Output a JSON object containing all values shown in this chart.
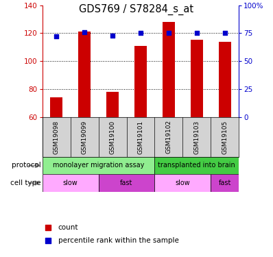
{
  "title": "GDS769 / S78284_s_at",
  "samples": [
    "GSM19098",
    "GSM19099",
    "GSM19100",
    "GSM19101",
    "GSM19102",
    "GSM19103",
    "GSM19105"
  ],
  "count_values": [
    74,
    121,
    78,
    111,
    128,
    115,
    114
  ],
  "percentile_values": [
    72,
    76,
    73,
    75,
    75,
    75,
    75
  ],
  "ylim_left": [
    60,
    140
  ],
  "ylim_right": [
    0,
    100
  ],
  "left_ticks": [
    60,
    80,
    100,
    120,
    140
  ],
  "right_ticks": [
    0,
    25,
    50,
    75,
    100
  ],
  "right_tick_labels": [
    "0",
    "25",
    "50",
    "75",
    "100%"
  ],
  "bar_color": "#cc0000",
  "dot_color": "#0000cc",
  "bar_bottom": 60,
  "protocol_groups": [
    {
      "label": "monolayer migration assay",
      "start": 0,
      "end": 4,
      "color": "#90ee90"
    },
    {
      "label": "transplanted into brain",
      "start": 4,
      "end": 7,
      "color": "#44cc44"
    }
  ],
  "cell_type_groups": [
    {
      "label": "slow",
      "start": 0,
      "end": 2,
      "color": "#ffaaff"
    },
    {
      "label": "fast",
      "start": 2,
      "end": 4,
      "color": "#cc44cc"
    },
    {
      "label": "slow",
      "start": 4,
      "end": 6,
      "color": "#ffaaff"
    },
    {
      "label": "fast",
      "start": 6,
      "end": 7,
      "color": "#cc44cc"
    }
  ],
  "legend_items": [
    {
      "label": "count",
      "color": "#cc0000"
    },
    {
      "label": "percentile rank within the sample",
      "color": "#0000cc"
    }
  ],
  "left_axis_color": "#cc0000",
  "right_axis_color": "#0000cc",
  "bg_color": "#ffffff",
  "label_bg": "#d3d3d3"
}
